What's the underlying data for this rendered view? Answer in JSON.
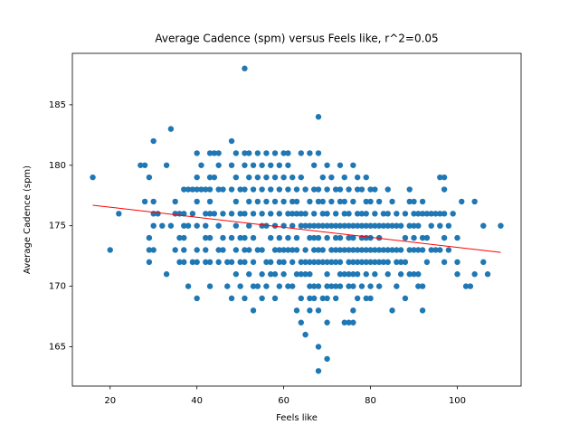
{
  "chart_data": {
    "type": "scatter",
    "title": "Average Cadence (spm) versus Feels like, r^2=0.05",
    "x_label": "Feels like",
    "y_label": "Average Cadence (spm)",
    "color": "#1f77b4",
    "xlim": [
      11.3,
      114.7
    ],
    "ylim": [
      161.75,
      189.25
    ],
    "xticks": [
      20,
      40,
      60,
      80,
      100
    ],
    "yticks": [
      165,
      170,
      175,
      180,
      185
    ],
    "fit_line": {
      "color": "#ff0000",
      "x": [
        16,
        110
      ],
      "y": [
        176.7,
        172.8
      ]
    },
    "x": [
      16,
      20,
      22,
      27,
      28,
      28,
      29,
      29,
      29,
      29,
      30,
      30,
      30,
      30,
      30,
      31,
      32,
      33,
      33,
      34,
      34,
      35,
      35,
      35,
      36,
      36,
      36,
      37,
      37,
      37,
      37,
      37,
      37,
      38,
      38,
      38,
      39,
      39,
      39,
      40,
      40,
      40,
      40,
      40,
      40,
      40,
      40,
      41,
      41,
      42,
      42,
      42,
      42,
      42,
      42,
      43,
      43,
      43,
      43,
      43,
      43,
      43,
      43,
      44,
      44,
      44,
      45,
      45,
      45,
      45,
      45,
      45,
      46,
      46,
      46,
      46,
      47,
      47,
      48,
      48,
      48,
      48,
      48,
      48,
      48,
      49,
      49,
      49,
      49,
      49,
      49,
      50,
      50,
      50,
      50,
      50,
      51,
      51,
      51,
      51,
      51,
      51,
      51,
      51,
      51,
      52,
      52,
      52,
      52,
      52,
      52,
      53,
      53,
      53,
      53,
      53,
      53,
      53,
      54,
      54,
      54,
      54,
      54,
      55,
      55,
      55,
      55,
      55,
      55,
      55,
      56,
      56,
      56,
      56,
      56,
      56,
      57,
      57,
      57,
      57,
      57,
      57,
      58,
      58,
      58,
      58,
      58,
      58,
      58,
      59,
      59,
      59,
      59,
      59,
      59,
      59,
      60,
      60,
      60,
      60,
      60,
      60,
      60,
      61,
      61,
      61,
      61,
      61,
      61,
      61,
      62,
      62,
      62,
      62,
      62,
      62,
      62,
      63,
      63,
      63,
      63,
      63,
      63,
      63,
      64,
      64,
      64,
      64,
      64,
      64,
      64,
      64,
      65,
      65,
      65,
      65,
      65,
      65,
      65,
      66,
      66,
      66,
      66,
      66,
      66,
      66,
      66,
      66,
      67,
      67,
      67,
      67,
      67,
      67,
      67,
      67,
      67,
      68,
      68,
      68,
      68,
      68,
      68,
      68,
      68,
      68,
      68,
      68,
      68,
      69,
      69,
      69,
      69,
      69,
      69,
      69,
      70,
      70,
      70,
      70,
      70,
      70,
      70,
      70,
      70,
      70,
      70,
      71,
      71,
      71,
      71,
      71,
      71,
      72,
      72,
      72,
      72,
      72,
      72,
      72,
      72,
      73,
      73,
      73,
      73,
      73,
      73,
      73,
      73,
      73,
      74,
      74,
      74,
      74,
      74,
      74,
      74,
      75,
      75,
      75,
      75,
      75,
      75,
      75,
      75,
      75,
      76,
      76,
      76,
      76,
      76,
      76,
      76,
      76,
      76,
      76,
      77,
      77,
      77,
      77,
      77,
      77,
      77,
      77,
      78,
      78,
      78,
      78,
      78,
      78,
      78,
      79,
      79,
      79,
      79,
      79,
      79,
      79,
      79,
      79,
      80,
      80,
      80,
      80,
      80,
      80,
      80,
      80,
      81,
      81,
      81,
      81,
      81,
      81,
      82,
      82,
      82,
      82,
      82,
      82,
      83,
      83,
      83,
      83,
      84,
      84,
      84,
      84,
      84,
      84,
      85,
      85,
      85,
      85,
      86,
      86,
      86,
      86,
      86,
      87,
      87,
      87,
      87,
      88,
      88,
      88,
      88,
      89,
      89,
      89,
      89,
      89,
      90,
      90,
      90,
      90,
      90,
      90,
      91,
      91,
      91,
      91,
      91,
      92,
      92,
      92,
      92,
      92,
      92,
      93,
      93,
      93,
      94,
      94,
      94,
      95,
      95,
      96,
      96,
      96,
      96,
      97,
      97,
      97,
      97,
      97,
      98,
      98,
      99,
      100,
      100,
      100,
      101,
      102,
      103,
      104,
      104,
      106,
      106,
      107,
      110
    ],
    "values": [
      179,
      173,
      176,
      180,
      180,
      177,
      179,
      174,
      173,
      172,
      182,
      177,
      176,
      175,
      173,
      176,
      175,
      180,
      171,
      183,
      175,
      177,
      176,
      173,
      176,
      174,
      172,
      178,
      176,
      175,
      174,
      173,
      172,
      178,
      175,
      170,
      178,
      176,
      172,
      181,
      179,
      178,
      177,
      175,
      173,
      172,
      169,
      180,
      178,
      178,
      176,
      175,
      174,
      173,
      172,
      181,
      179,
      178,
      177,
      176,
      174,
      172,
      170,
      181,
      179,
      176,
      181,
      180,
      178,
      175,
      173,
      172,
      178,
      176,
      174,
      173,
      172,
      170,
      182,
      180,
      178,
      176,
      174,
      172,
      169,
      181,
      179,
      177,
      175,
      173,
      171,
      178,
      176,
      174,
      172,
      170,
      188,
      181,
      180,
      178,
      176,
      174,
      173,
      172,
      169,
      181,
      179,
      177,
      175,
      173,
      171,
      180,
      178,
      176,
      174,
      172,
      170,
      168,
      181,
      179,
      177,
      173,
      170,
      180,
      178,
      176,
      175,
      173,
      171,
      169,
      181,
      179,
      177,
      175,
      172,
      170,
      180,
      178,
      176,
      174,
      172,
      171,
      181,
      179,
      177,
      175,
      173,
      171,
      169,
      180,
      178,
      176,
      174,
      173,
      172,
      170,
      181,
      179,
      177,
      175,
      173,
      172,
      171,
      181,
      180,
      178,
      176,
      174,
      173,
      170,
      179,
      177,
      176,
      175,
      173,
      172,
      170,
      178,
      177,
      176,
      174,
      173,
      171,
      168,
      181,
      179,
      176,
      175,
      172,
      171,
      169,
      167,
      178,
      176,
      175,
      173,
      172,
      171,
      166,
      181,
      177,
      175,
      174,
      172,
      171,
      170,
      169,
      168,
      180,
      178,
      176,
      175,
      174,
      173,
      172,
      170,
      169,
      184,
      181,
      178,
      177,
      175,
      174,
      173,
      172,
      170,
      168,
      165,
      163,
      179,
      177,
      176,
      175,
      173,
      172,
      169,
      180,
      178,
      176,
      175,
      174,
      172,
      171,
      170,
      169,
      167,
      164,
      179,
      177,
      175,
      173,
      172,
      170,
      178,
      176,
      175,
      174,
      173,
      172,
      170,
      169,
      180,
      178,
      177,
      175,
      174,
      173,
      172,
      171,
      170,
      179,
      177,
      176,
      175,
      173,
      171,
      167,
      178,
      176,
      175,
      174,
      173,
      172,
      171,
      170,
      167,
      180,
      177,
      175,
      174,
      173,
      172,
      171,
      170,
      168,
      167,
      179,
      178,
      176,
      175,
      173,
      172,
      171,
      169,
      178,
      176,
      175,
      174,
      173,
      172,
      170,
      179,
      177,
      176,
      175,
      174,
      173,
      172,
      171,
      169,
      178,
      177,
      175,
      174,
      173,
      172,
      170,
      169,
      178,
      176,
      175,
      173,
      172,
      171,
      177,
      175,
      174,
      173,
      172,
      170,
      176,
      175,
      173,
      172,
      178,
      176,
      175,
      173,
      172,
      171,
      177,
      175,
      173,
      168,
      176,
      175,
      173,
      172,
      170,
      175,
      173,
      172,
      171,
      176,
      174,
      172,
      169,
      178,
      177,
      175,
      173,
      171,
      177,
      176,
      175,
      174,
      173,
      171,
      176,
      175,
      173,
      171,
      170,
      177,
      176,
      174,
      173,
      170,
      168,
      176,
      174,
      172,
      176,
      175,
      173,
      176,
      173,
      179,
      176,
      175,
      173,
      179,
      178,
      176,
      174,
      172,
      175,
      173,
      176,
      174,
      172,
      171,
      177,
      170,
      170,
      177,
      171,
      175,
      172,
      171,
      175
    ]
  }
}
